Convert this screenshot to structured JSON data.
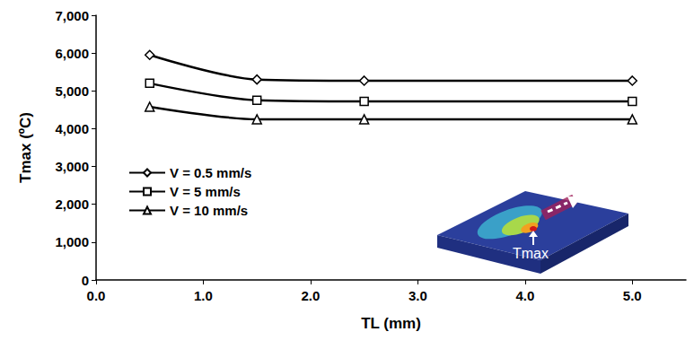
{
  "chart_data": {
    "type": "line",
    "x_label": "TL (mm)",
    "y_label": "Tmax (ºC)",
    "annotation": "Tmax",
    "xlim": [
      0,
      5.5
    ],
    "xticks": [
      {
        "value": 0,
        "label": "0.0"
      },
      {
        "value": 1,
        "label": "1.0"
      },
      {
        "value": 2,
        "label": "2.0"
      },
      {
        "value": 3,
        "label": "3.0"
      },
      {
        "value": 4,
        "label": "4.0"
      },
      {
        "value": 5,
        "label": "5.0"
      }
    ],
    "ylim": [
      0,
      7000
    ],
    "yticks": [
      0,
      {
        "value": 1000,
        "label": "1,000"
      },
      {
        "value": 2000,
        "label": "2,000"
      },
      {
        "value": 3000,
        "label": "3,000"
      },
      {
        "value": 4000,
        "label": "4,000"
      },
      {
        "value": 5000,
        "label": "5,000"
      },
      {
        "value": 6000,
        "label": "6,000"
      },
      {
        "value": 7000,
        "label": "7,000"
      }
    ],
    "grid": false,
    "legend": "left",
    "x": [
      0.5,
      1.5,
      2.5,
      5.0
    ],
    "series": [
      {
        "name": "V = 0.5 mm/s",
        "color": "#000000",
        "marker": "diamond",
        "line_style": "solid",
        "values": [
          5950,
          5300,
          5270,
          5270
        ]
      },
      {
        "name": "V = 5 mm/s",
        "color": "#000000",
        "marker": "square",
        "line_style": "solid",
        "values": [
          5200,
          4750,
          4720,
          4720
        ]
      },
      {
        "name": "V = 10 mm/s",
        "color": "#000000",
        "marker": "triangle",
        "line_style": "solid",
        "values": [
          4580,
          4250,
          4250,
          4250
        ]
      }
    ]
  }
}
